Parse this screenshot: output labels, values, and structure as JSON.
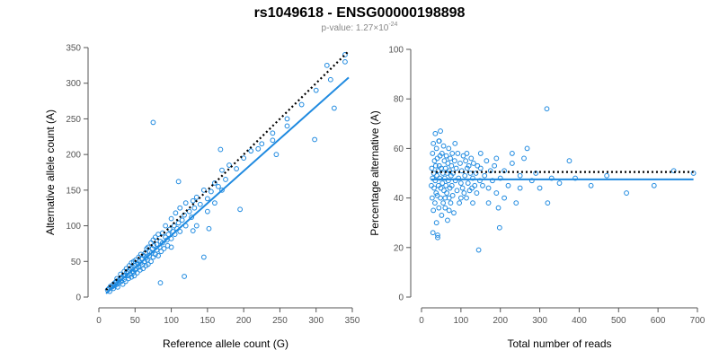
{
  "title": "rs1049618 - ENSG00000198898",
  "subtitle": {
    "prefix": "p-value: 1.27×10",
    "exponent": "-24"
  },
  "colors": {
    "points": "#1f8ae0",
    "fit": "#1f8ae0",
    "reference": "#000000"
  },
  "chart_data": [
    {
      "type": "scatter",
      "xlabel": "Reference allele count (G)",
      "ylabel": "Alternative allele count (A)",
      "xlim": [
        0,
        350
      ],
      "ylim": [
        0,
        350
      ],
      "xticks": [
        0,
        50,
        100,
        150,
        200,
        250,
        300,
        350
      ],
      "yticks": [
        0,
        50,
        100,
        150,
        200,
        250,
        300,
        350
      ],
      "fit_line": {
        "x": [
          10,
          345
        ],
        "y": [
          5,
          308
        ]
      },
      "reference_line": {
        "x": [
          10,
          345
        ],
        "y": [
          10,
          345
        ]
      },
      "points": [
        [
          12,
          10
        ],
        [
          14,
          12
        ],
        [
          15,
          8
        ],
        [
          16,
          15
        ],
        [
          18,
          14
        ],
        [
          20,
          18
        ],
        [
          20,
          12
        ],
        [
          22,
          20
        ],
        [
          22,
          16
        ],
        [
          24,
          22
        ],
        [
          25,
          18
        ],
        [
          25,
          26
        ],
        [
          26,
          14
        ],
        [
          28,
          24
        ],
        [
          28,
          20
        ],
        [
          30,
          26
        ],
        [
          30,
          32
        ],
        [
          31,
          22
        ],
        [
          32,
          28
        ],
        [
          33,
          18
        ],
        [
          34,
          30
        ],
        [
          35,
          25
        ],
        [
          35,
          36
        ],
        [
          36,
          30
        ],
        [
          37,
          22
        ],
        [
          38,
          34
        ],
        [
          38,
          40
        ],
        [
          40,
          30
        ],
        [
          40,
          36
        ],
        [
          41,
          26
        ],
        [
          42,
          38
        ],
        [
          42,
          44
        ],
        [
          43,
          32
        ],
        [
          44,
          40
        ],
        [
          45,
          28
        ],
        [
          45,
          48
        ],
        [
          46,
          36
        ],
        [
          47,
          42
        ],
        [
          48,
          34
        ],
        [
          48,
          50
        ],
        [
          49,
          30
        ],
        [
          50,
          44
        ],
        [
          50,
          38
        ],
        [
          51,
          52
        ],
        [
          52,
          40
        ],
        [
          53,
          34
        ],
        [
          54,
          46
        ],
        [
          55,
          42
        ],
        [
          55,
          56
        ],
        [
          56,
          50
        ],
        [
          57,
          38
        ],
        [
          58,
          48
        ],
        [
          58,
          60
        ],
        [
          60,
          45
        ],
        [
          60,
          54
        ],
        [
          61,
          40
        ],
        [
          62,
          58
        ],
        [
          63,
          50
        ],
        [
          64,
          62
        ],
        [
          65,
          44
        ],
        [
          65,
          55
        ],
        [
          66,
          68
        ],
        [
          67,
          52
        ],
        [
          68,
          46
        ],
        [
          68,
          70
        ],
        [
          70,
          58
        ],
        [
          70,
          64
        ],
        [
          72,
          50
        ],
        [
          72,
          76
        ],
        [
          73,
          62
        ],
        [
          74,
          68
        ],
        [
          75,
          56
        ],
        [
          75,
          80
        ],
        [
          76,
          72
        ],
        [
          78,
          60
        ],
        [
          78,
          84
        ],
        [
          80,
          66
        ],
        [
          80,
          74
        ],
        [
          82,
          58
        ],
        [
          82,
          88
        ],
        [
          84,
          70
        ],
        [
          85,
          78
        ],
        [
          86,
          64
        ],
        [
          88,
          90
        ],
        [
          88,
          76
        ],
        [
          90,
          68
        ],
        [
          92,
          84
        ],
        [
          92,
          100
        ],
        [
          94,
          80
        ],
        [
          95,
          72
        ],
        [
          96,
          88
        ],
        [
          98,
          95
        ],
        [
          100,
          82
        ],
        [
          100,
          110
        ],
        [
          102,
          92
        ],
        [
          104,
          100
        ],
        [
          105,
          88
        ],
        [
          106,
          118
        ],
        [
          108,
          96
        ],
        [
          110,
          104
        ],
        [
          112,
          92
        ],
        [
          112,
          125
        ],
        [
          115,
          108
        ],
        [
          118,
          115
        ],
        [
          120,
          100
        ],
        [
          120,
          132
        ],
        [
          125,
          120
        ],
        [
          128,
          112
        ],
        [
          130,
          135
        ],
        [
          132,
          125
        ],
        [
          135,
          140
        ],
        [
          140,
          130
        ],
        [
          145,
          150
        ],
        [
          150,
          138
        ],
        [
          155,
          148
        ],
        [
          160,
          160
        ],
        [
          165,
          155
        ],
        [
          170,
          178
        ],
        [
          175,
          165
        ],
        [
          180,
          185
        ],
        [
          190,
          180
        ],
        [
          200,
          195
        ],
        [
          210,
          205
        ],
        [
          225,
          215
        ],
        [
          240,
          230
        ],
        [
          260,
          250
        ],
        [
          280,
          270
        ],
        [
          300,
          290
        ],
        [
          320,
          305
        ],
        [
          340,
          330
        ],
        [
          75,
          245
        ],
        [
          168,
          207
        ],
        [
          110,
          162
        ],
        [
          145,
          56
        ],
        [
          118,
          29
        ],
        [
          152,
          96
        ],
        [
          195,
          123
        ],
        [
          245,
          200
        ],
        [
          298,
          221
        ],
        [
          325,
          265
        ],
        [
          240,
          220
        ],
        [
          315,
          325
        ],
        [
          340,
          340
        ],
        [
          160,
          132
        ],
        [
          130,
          93
        ],
        [
          85,
          20
        ],
        [
          170,
          150
        ],
        [
          220,
          208
        ],
        [
          260,
          240
        ],
        [
          100,
          70
        ],
        [
          135,
          100
        ],
        [
          150,
          120
        ]
      ]
    },
    {
      "type": "scatter",
      "xlabel": "Total number of reads",
      "ylabel": "Percentage alternative (A)",
      "xlim": [
        0,
        700
      ],
      "ylim": [
        0,
        100
      ],
      "xticks": [
        0,
        100,
        200,
        300,
        400,
        500,
        600,
        700
      ],
      "yticks": [
        0,
        20,
        40,
        60,
        80,
        100
      ],
      "fit_line": {
        "x": [
          25,
          690
        ],
        "y": [
          47.5,
          47.5
        ]
      },
      "reference_line": {
        "x": [
          25,
          690
        ],
        "y": [
          50.5,
          50.5
        ]
      },
      "points": [
        [
          25,
          45
        ],
        [
          26,
          52
        ],
        [
          27,
          40
        ],
        [
          28,
          58
        ],
        [
          28,
          48
        ],
        [
          30,
          35
        ],
        [
          30,
          62
        ],
        [
          31,
          50
        ],
        [
          32,
          44
        ],
        [
          33,
          55
        ],
        [
          34,
          38
        ],
        [
          35,
          66
        ],
        [
          35,
          47
        ],
        [
          36,
          53
        ],
        [
          37,
          42
        ],
        [
          38,
          60
        ],
        [
          38,
          30
        ],
        [
          39,
          49
        ],
        [
          40,
          56
        ],
        [
          40,
          41
        ],
        [
          41,
          25
        ],
        [
          41,
          24
        ],
        [
          42,
          51
        ],
        [
          43,
          45
        ],
        [
          44,
          63
        ],
        [
          44,
          36
        ],
        [
          45,
          53
        ],
        [
          46,
          48
        ],
        [
          47,
          57
        ],
        [
          48,
          40
        ],
        [
          48,
          67
        ],
        [
          49,
          44
        ],
        [
          50,
          52
        ],
        [
          51,
          33
        ],
        [
          52,
          58
        ],
        [
          53,
          46
        ],
        [
          54,
          50
        ],
        [
          55,
          38
        ],
        [
          56,
          61
        ],
        [
          57,
          43
        ],
        [
          58,
          55
        ],
        [
          59,
          48
        ],
        [
          60,
          36
        ],
        [
          61,
          52
        ],
        [
          62,
          45
        ],
        [
          63,
          57
        ],
        [
          64,
          42
        ],
        [
          65,
          50
        ],
        [
          66,
          31
        ],
        [
          67,
          54
        ],
        [
          68,
          47
        ],
        [
          69,
          60
        ],
        [
          70,
          40
        ],
        [
          71,
          51
        ],
        [
          72,
          44
        ],
        [
          73,
          56
        ],
        [
          74,
          38
        ],
        [
          75,
          49
        ],
        [
          76,
          53
        ],
        [
          77,
          45
        ],
        [
          78,
          58
        ],
        [
          79,
          41
        ],
        [
          80,
          50
        ],
        [
          82,
          34
        ],
        [
          84,
          55
        ],
        [
          86,
          47
        ],
        [
          88,
          52
        ],
        [
          90,
          43
        ],
        [
          92,
          58
        ],
        [
          94,
          48
        ],
        [
          96,
          38
        ],
        [
          98,
          54
        ],
        [
          100,
          46
        ],
        [
          102,
          51
        ],
        [
          104,
          44
        ],
        [
          106,
          57
        ],
        [
          108,
          42
        ],
        [
          110,
          49
        ],
        [
          112,
          55
        ],
        [
          114,
          40
        ],
        [
          116,
          52
        ],
        [
          118,
          46
        ],
        [
          120,
          53
        ],
        [
          122,
          43
        ],
        [
          124,
          50
        ],
        [
          126,
          56
        ],
        [
          128,
          44
        ],
        [
          130,
          48
        ],
        [
          132,
          54
        ],
        [
          135,
          45
        ],
        [
          138,
          50
        ],
        [
          140,
          42
        ],
        [
          142,
          53
        ],
        [
          145,
          19
        ],
        [
          148,
          47
        ],
        [
          150,
          52
        ],
        [
          155,
          45
        ],
        [
          160,
          49
        ],
        [
          165,
          55
        ],
        [
          170,
          44
        ],
        [
          175,
          51
        ],
        [
          180,
          47
        ],
        [
          185,
          53
        ],
        [
          190,
          42
        ],
        [
          195,
          36
        ],
        [
          198,
          28
        ],
        [
          200,
          48
        ],
        [
          210,
          51
        ],
        [
          220,
          45
        ],
        [
          230,
          54
        ],
        [
          240,
          38
        ],
        [
          250,
          49
        ],
        [
          260,
          56
        ],
        [
          268,
          60
        ],
        [
          280,
          47
        ],
        [
          290,
          50
        ],
        [
          300,
          44
        ],
        [
          318,
          76
        ],
        [
          320,
          38
        ],
        [
          330,
          48
        ],
        [
          350,
          46
        ],
        [
          375,
          55
        ],
        [
          390,
          48
        ],
        [
          430,
          45
        ],
        [
          470,
          49
        ],
        [
          520,
          42
        ],
        [
          590,
          45
        ],
        [
          640,
          51
        ],
        [
          690,
          50
        ],
        [
          29,
          26
        ],
        [
          45,
          63
        ],
        [
          60,
          40
        ],
        [
          70,
          35
        ],
        [
          85,
          62
        ],
        [
          100,
          40
        ],
        [
          115,
          58
        ],
        [
          130,
          38
        ],
        [
          150,
          58
        ],
        [
          170,
          38
        ],
        [
          190,
          56
        ],
        [
          210,
          40
        ],
        [
          230,
          58
        ],
        [
          250,
          44
        ]
      ]
    }
  ]
}
